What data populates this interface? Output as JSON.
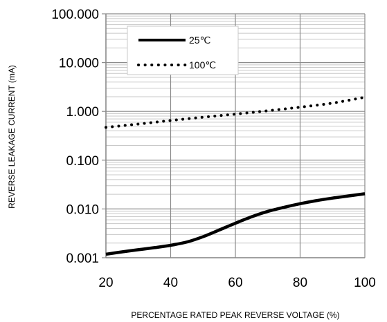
{
  "chart_data": {
    "type": "line",
    "xlabel": "PERCENTAGE RATED PEAK REVERSE VOLTAGE (%)",
    "ylabel": "REVERSE LEAKAGE CURRENT (mA)",
    "xlim": [
      20,
      100
    ],
    "ylim": [
      0.001,
      100
    ],
    "yscale": "log",
    "grid": true,
    "legend_position": "top-left",
    "x_ticks": [
      20,
      40,
      60,
      80,
      100
    ],
    "x_tick_labels": [
      "20",
      "40",
      "60",
      "80",
      "100"
    ],
    "y_ticks": [
      0.001,
      0.01,
      0.1,
      1,
      10,
      100
    ],
    "y_tick_labels": [
      "0.001",
      "0.010",
      "0.100",
      "1.000",
      "10.000",
      "100.000"
    ],
    "series": [
      {
        "name": "25℃",
        "style": "solid",
        "color": "#000000",
        "x": [
          20,
          25,
          30,
          35,
          40,
          45,
          50,
          55,
          60,
          65,
          70,
          75,
          80,
          85,
          90,
          95,
          100
        ],
        "y": [
          0.00118,
          0.00132,
          0.00146,
          0.00161,
          0.0018,
          0.0021,
          0.0027,
          0.0037,
          0.0051,
          0.0069,
          0.0089,
          0.0108,
          0.0128,
          0.0148,
          0.0167,
          0.0185,
          0.0205
        ]
      },
      {
        "name": "100℃",
        "style": "dotted",
        "color": "#000000",
        "x": [
          20,
          30,
          40,
          50,
          60,
          70,
          80,
          90,
          100
        ],
        "y": [
          0.47,
          0.55,
          0.65,
          0.76,
          0.88,
          1.03,
          1.22,
          1.48,
          1.95
        ]
      }
    ]
  }
}
